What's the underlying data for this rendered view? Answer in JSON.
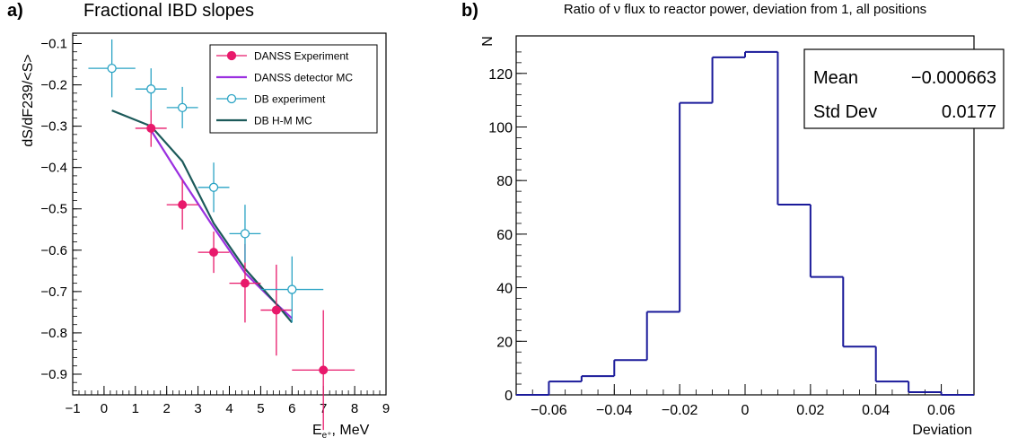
{
  "panels": {
    "a_label": "a)",
    "b_label": "b)"
  },
  "chart_data": [
    {
      "type": "scatter",
      "title": "Fractional IBD slopes",
      "xlabel": "E",
      "xlabel_sub": "e⁺",
      "xlabel_unit": ", MeV",
      "ylabel": "dS/dF239/<S>",
      "xlim": [
        -1,
        9
      ],
      "ylim": [
        -0.95,
        -0.075
      ],
      "x_ticks": [
        -1,
        0,
        1,
        2,
        3,
        4,
        5,
        6,
        7,
        8,
        9
      ],
      "y_ticks": [
        -0.9,
        -0.8,
        -0.7,
        -0.6,
        -0.5,
        -0.4,
        -0.3,
        -0.2,
        -0.1
      ],
      "legend_position": "top-right",
      "series": [
        {
          "name": "DANSS Experiment",
          "kind": "points",
          "marker": "filled-circle",
          "color": "#e8196b",
          "points": [
            {
              "x": 1.5,
              "y": -0.305,
              "xerr": 0.5,
              "yerr": 0.045
            },
            {
              "x": 2.5,
              "y": -0.49,
              "xerr": 0.5,
              "yerr": 0.06
            },
            {
              "x": 3.5,
              "y": -0.605,
              "xerr": 0.5,
              "yerr": 0.05
            },
            {
              "x": 4.5,
              "y": -0.68,
              "xerr": 0.5,
              "yerr": 0.095
            },
            {
              "x": 5.5,
              "y": -0.745,
              "xerr": 0.5,
              "yerr": 0.11
            },
            {
              "x": 7.0,
              "y": -0.89,
              "xerr": 1.0,
              "yerr": 0.145
            }
          ]
        },
        {
          "name": "DANSS detector MC",
          "kind": "line",
          "color": "#9b30e0",
          "x": [
            1.5,
            2.5,
            3.5,
            4.5,
            5.5,
            6.0
          ],
          "y": [
            -0.31,
            -0.43,
            -0.545,
            -0.655,
            -0.73,
            -0.765
          ]
        },
        {
          "name": "DB experiment",
          "kind": "points",
          "marker": "open-circle",
          "color": "#2aa3c4",
          "points": [
            {
              "x": 0.25,
              "y": -0.16,
              "xerr": 0.75,
              "yerr": 0.07
            },
            {
              "x": 1.5,
              "y": -0.21,
              "xerr": 0.5,
              "yerr": 0.05
            },
            {
              "x": 2.5,
              "y": -0.255,
              "xerr": 0.5,
              "yerr": 0.05
            },
            {
              "x": 3.5,
              "y": -0.448,
              "xerr": 0.5,
              "yerr": 0.06
            },
            {
              "x": 4.5,
              "y": -0.56,
              "xerr": 0.5,
              "yerr": 0.07
            },
            {
              "x": 6.0,
              "y": -0.695,
              "xerr": 1.0,
              "yerr": 0.08
            }
          ]
        },
        {
          "name": "DB H-M MC",
          "kind": "line",
          "color": "#1c5a5a",
          "x": [
            0.25,
            1.5,
            2.5,
            3.5,
            4.5,
            5.5,
            6.0
          ],
          "y": [
            -0.262,
            -0.3,
            -0.385,
            -0.535,
            -0.645,
            -0.73,
            -0.775
          ]
        }
      ]
    },
    {
      "type": "bar",
      "subtype": "histogram",
      "title": "Ratio of ν flux to reactor power, deviation from 1, all positions",
      "xlabel": "Deviation",
      "ylabel": "N",
      "xlim": [
        -0.07,
        0.07
      ],
      "ylim": [
        0,
        134
      ],
      "x_ticks": [
        -0.06,
        -0.04,
        -0.02,
        0,
        0.02,
        0.04,
        0.06
      ],
      "x_tick_labels": [
        "−0.06",
        "−0.04",
        "−0.02",
        "0",
        "0.02",
        "0.04",
        "0.06"
      ],
      "y_ticks": [
        0,
        20,
        40,
        60,
        80,
        100,
        120
      ],
      "color": "#1a1a9a",
      "bin_edges": [
        -0.07,
        -0.06,
        -0.05,
        -0.04,
        -0.03,
        -0.02,
        -0.01,
        0.0,
        0.01,
        0.02,
        0.03,
        0.04,
        0.05,
        0.06,
        0.07
      ],
      "counts": [
        0,
        5,
        7,
        13,
        31,
        109,
        126,
        128,
        71,
        44,
        18,
        5,
        1,
        0
      ],
      "stats": [
        {
          "label": "Mean",
          "value": "−0.000663"
        },
        {
          "label": "Std Dev",
          "value": "0.0177"
        }
      ]
    }
  ]
}
